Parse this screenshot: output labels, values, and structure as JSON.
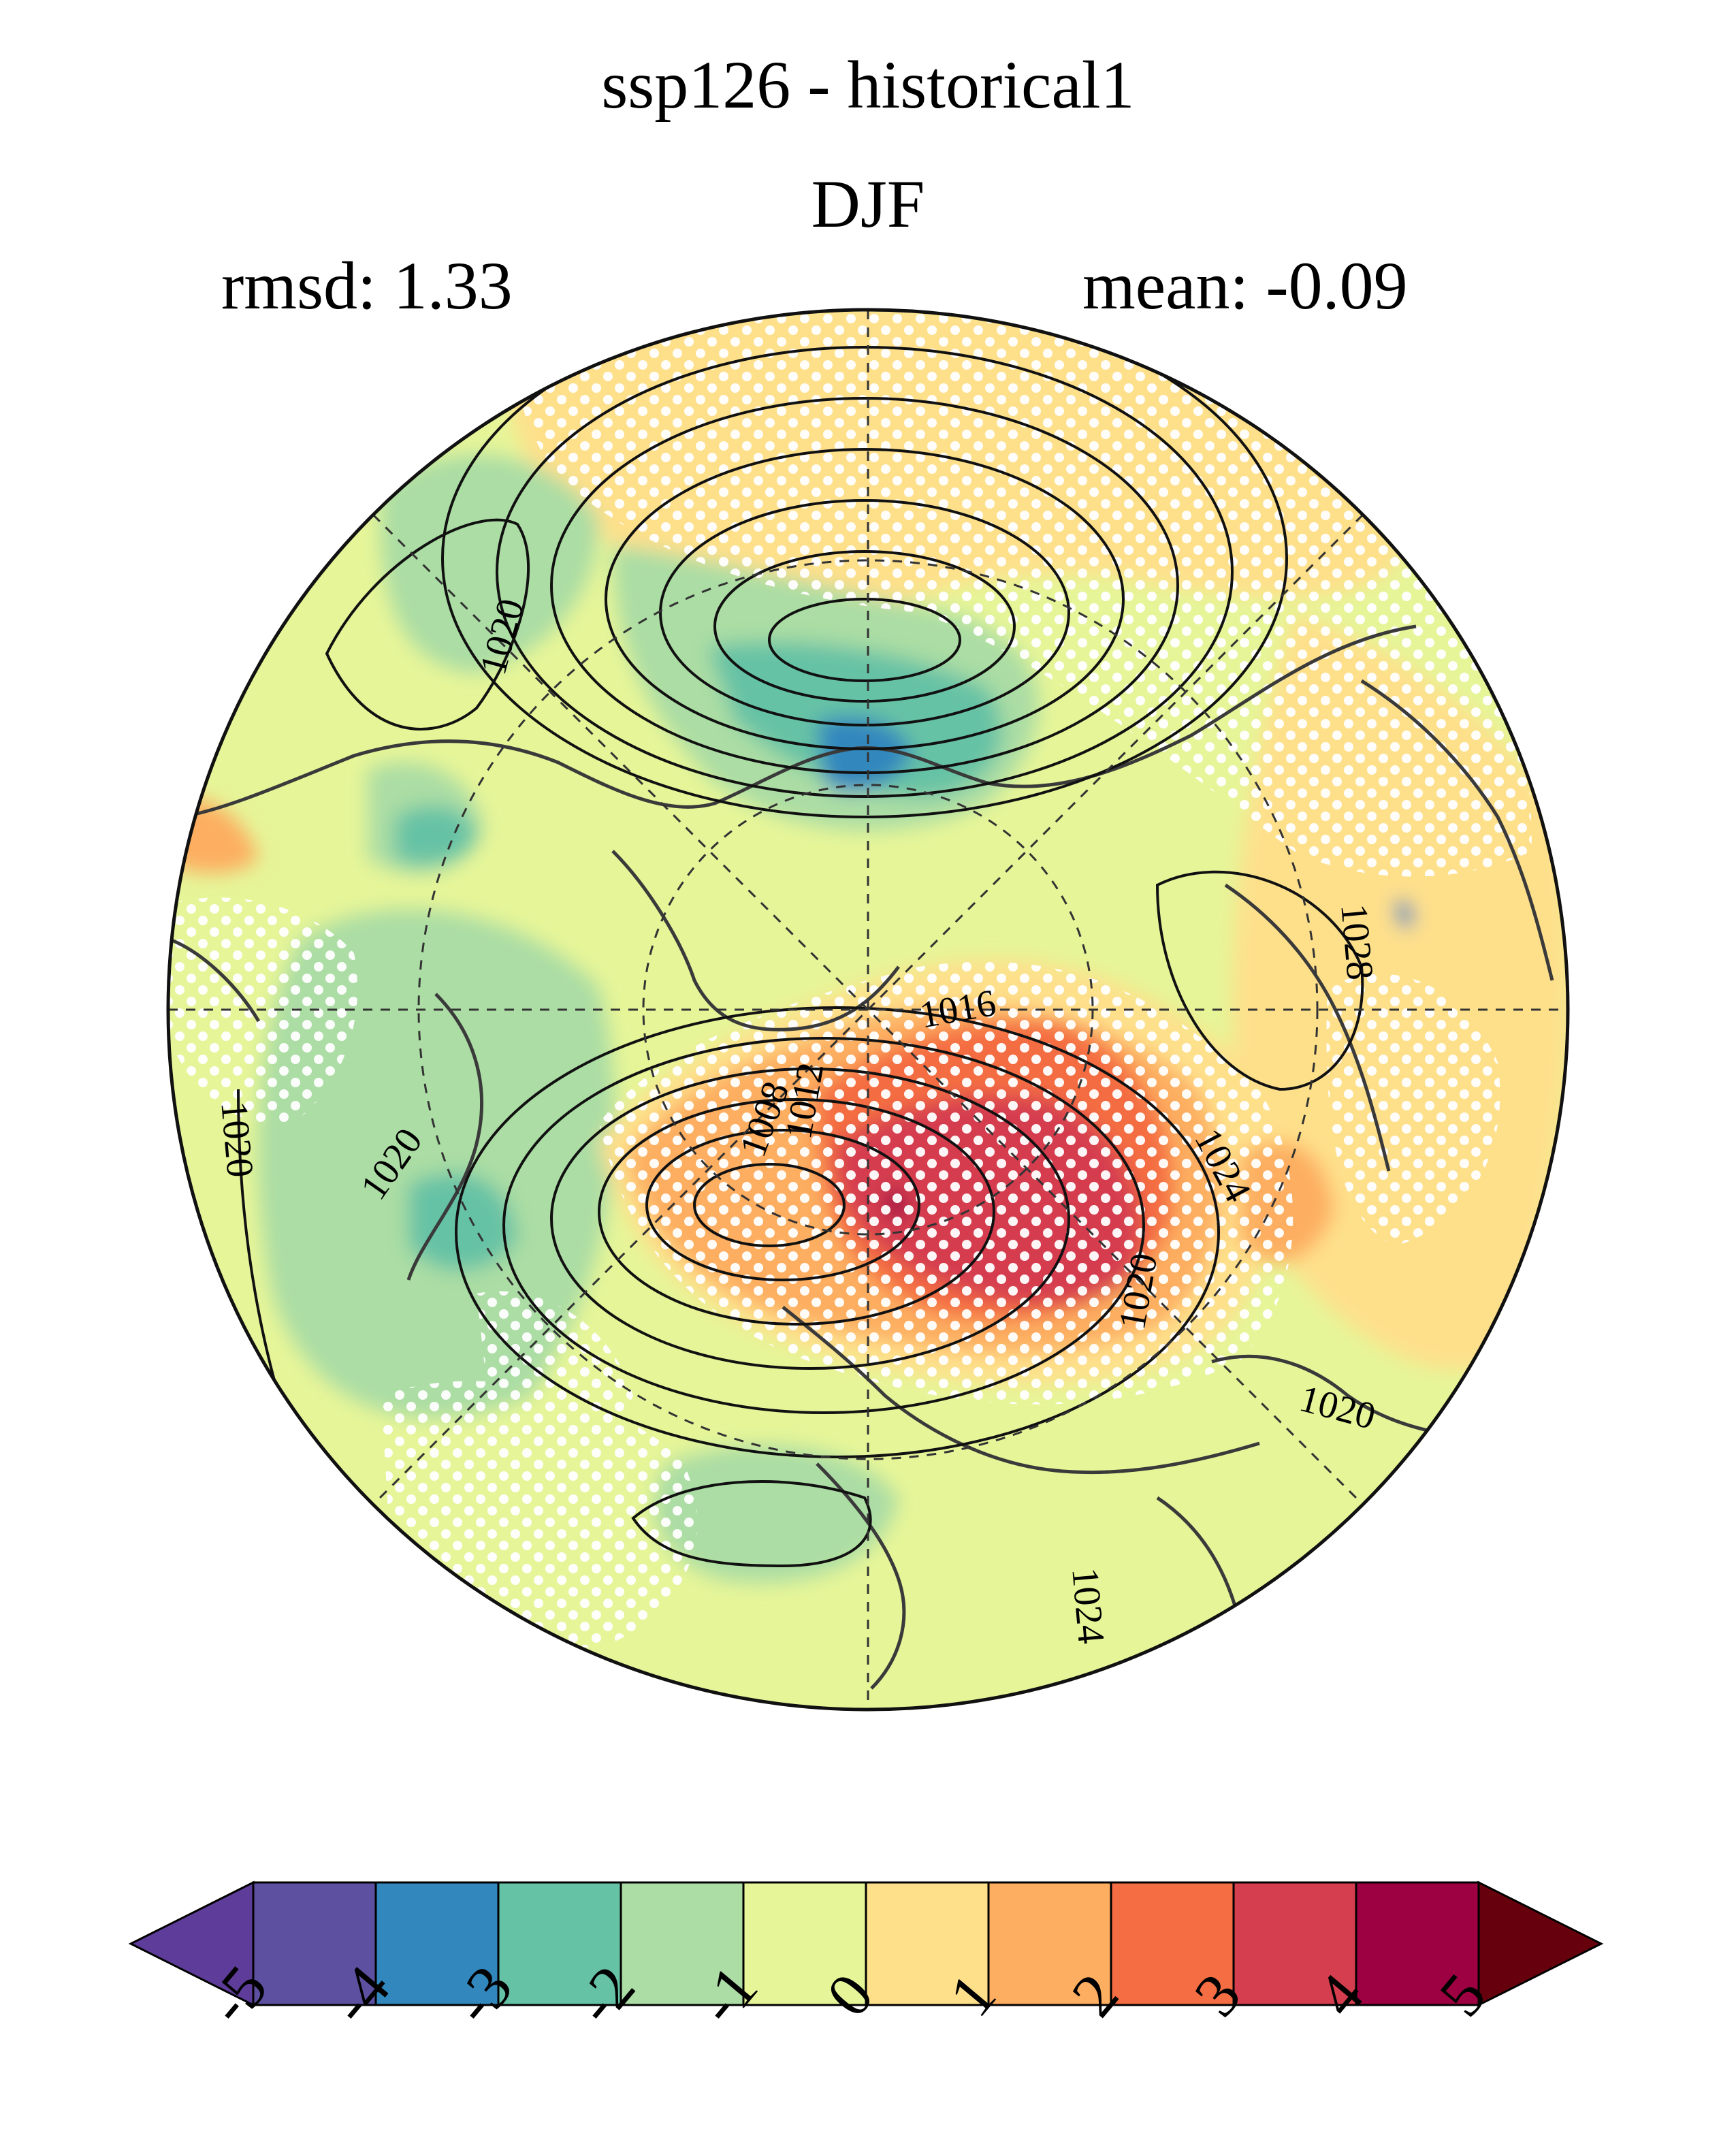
{
  "header": {
    "title": "ssp126 - historical1",
    "subtitle": "DJF",
    "rmsd": "rmsd: 1.33",
    "mean": "mean: -0.09"
  },
  "map": {
    "projection": "north-polar-stereographic",
    "field": "difference (shaded)",
    "contours": "absolute (black lines)",
    "stippling": "white dots",
    "contour_labels": [
      "1020",
      "1020",
      "1020",
      "1016",
      "1008",
      "1012",
      "1024",
      "1020",
      "1020",
      "1028",
      "1024"
    ]
  },
  "colorbar": {
    "ticks": [
      "-5",
      "-4",
      "-3",
      "-2",
      "-1",
      "0",
      "1",
      "2",
      "3",
      "4",
      "5"
    ],
    "colors": [
      "#5e3c99",
      "#5e50a1",
      "#3288bd",
      "#66c2a5",
      "#abdda4",
      "#e6f598",
      "#fee08b",
      "#fdae61",
      "#f46d43",
      "#d53e4f",
      "#9e0142",
      "#67000d"
    ]
  }
}
